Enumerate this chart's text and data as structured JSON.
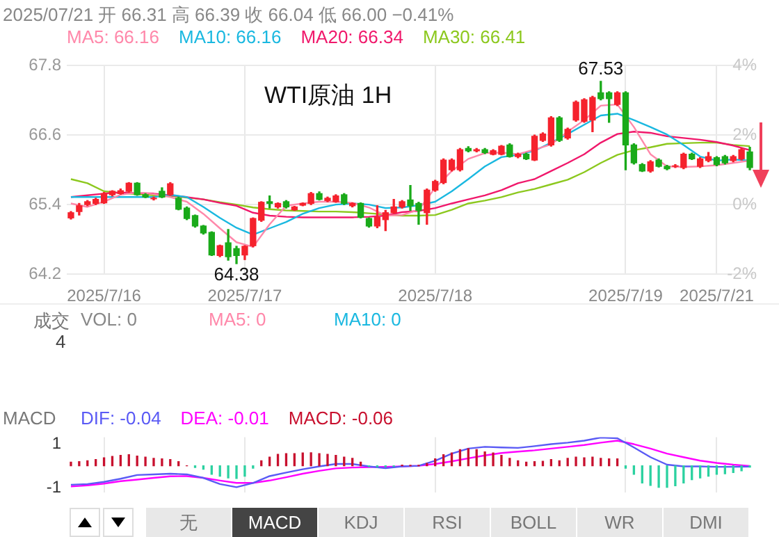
{
  "chart_data": [
    {
      "type": "candlestick",
      "title": "WTI原油 1H",
      "annotations": [
        "2025/07/21 开 66.31 高 66.39 收 66.04 低 66.00 −0.41%",
        {
          "text": "67.53",
          "y": 67.53
        },
        {
          "text": "64.38",
          "y": 64.38
        }
      ],
      "categories": [
        null,
        null,
        null,
        null,
        "2025/7/16",
        null,
        null,
        null,
        null,
        null,
        null,
        null,
        null,
        null,
        null,
        null,
        null,
        null,
        null,
        null,
        null,
        "2025/7/17",
        null,
        null,
        null,
        null,
        null,
        null,
        null,
        null,
        null,
        null,
        null,
        null,
        null,
        null,
        null,
        null,
        null,
        null,
        null,
        null,
        null,
        null,
        "2025/7/18",
        null,
        null,
        null,
        null,
        null,
        null,
        null,
        null,
        null,
        null,
        null,
        null,
        null,
        null,
        null,
        null,
        null,
        null,
        null,
        null,
        null,
        null,
        "2025/7/19",
        null,
        null,
        null,
        null,
        null,
        null,
        null,
        null,
        null,
        null,
        "2025/7/21",
        null,
        null,
        null,
        null
      ],
      "ohlc": [
        [
          65.17,
          65.28,
          65.15,
          65.26
        ],
        [
          65.28,
          65.42,
          65.22,
          65.38
        ],
        [
          65.4,
          65.47,
          65.38,
          65.45
        ],
        [
          65.42,
          65.51,
          65.4,
          65.49
        ],
        [
          65.43,
          65.61,
          65.42,
          65.59
        ],
        [
          65.57,
          65.64,
          65.55,
          65.63
        ],
        [
          65.59,
          65.67,
          65.58,
          65.64
        ],
        [
          65.63,
          65.78,
          65.61,
          65.77
        ],
        [
          65.77,
          65.78,
          65.56,
          65.57
        ],
        [
          65.57,
          65.59,
          65.52,
          65.53
        ],
        [
          65.5,
          65.53,
          65.48,
          65.51
        ],
        [
          65.63,
          65.69,
          65.52,
          65.53
        ],
        [
          65.57,
          65.78,
          65.56,
          65.76
        ],
        [
          65.51,
          65.53,
          65.31,
          65.32
        ],
        [
          65.34,
          65.36,
          65.14,
          65.16
        ],
        [
          65.21,
          65.22,
          65.01,
          65.03
        ],
        [
          65.03,
          65.04,
          64.89,
          64.91
        ],
        [
          64.92,
          64.93,
          64.52,
          64.53
        ],
        [
          64.52,
          64.7,
          64.5,
          64.69
        ],
        [
          64.74,
          64.97,
          64.44,
          64.5
        ],
        [
          64.64,
          64.68,
          64.38,
          64.52
        ],
        [
          64.53,
          64.69,
          64.45,
          64.68
        ],
        [
          64.69,
          65.17,
          64.67,
          65.16
        ],
        [
          65.13,
          65.45,
          65.11,
          65.44
        ],
        [
          65.45,
          65.55,
          65.34,
          65.42
        ],
        [
          65.36,
          65.43,
          65.34,
          65.42
        ],
        [
          65.45,
          65.47,
          65.34,
          65.36
        ],
        [
          65.31,
          65.37,
          65.3,
          65.36
        ],
        [
          65.39,
          65.43,
          65.38,
          65.42
        ],
        [
          65.42,
          65.61,
          65.4,
          65.59
        ],
        [
          65.59,
          65.62,
          65.48,
          65.49
        ],
        [
          65.47,
          65.53,
          65.45,
          65.51
        ],
        [
          65.45,
          65.57,
          65.44,
          65.55
        ],
        [
          65.57,
          65.59,
          65.4,
          65.42
        ],
        [
          65.38,
          65.43,
          65.36,
          65.42
        ],
        [
          65.42,
          65.43,
          65.17,
          65.18
        ],
        [
          65.16,
          65.17,
          65.01,
          65.03
        ],
        [
          65.03,
          65.38,
          65.0,
          65.18
        ],
        [
          65.14,
          65.3,
          64.95,
          65.26
        ],
        [
          65.26,
          65.49,
          65.25,
          65.36
        ],
        [
          65.36,
          65.47,
          65.34,
          65.45
        ],
        [
          65.48,
          65.73,
          65.3,
          65.38
        ],
        [
          65.42,
          65.44,
          65.06,
          65.3
        ],
        [
          65.26,
          65.67,
          65.06,
          65.65
        ],
        [
          65.65,
          65.82,
          65.63,
          65.8
        ],
        [
          65.78,
          66.19,
          65.76,
          66.17
        ],
        [
          66.0,
          66.19,
          65.98,
          66.17
        ],
        [
          66.0,
          66.37,
          65.98,
          66.35
        ],
        [
          66.37,
          66.4,
          66.31,
          66.33
        ],
        [
          66.33,
          66.37,
          66.31,
          66.35
        ],
        [
          66.35,
          66.37,
          66.28,
          66.3
        ],
        [
          66.27,
          66.35,
          66.26,
          66.33
        ],
        [
          66.27,
          66.42,
          66.26,
          66.41
        ],
        [
          66.43,
          66.45,
          66.22,
          66.23
        ],
        [
          66.23,
          66.29,
          66.21,
          66.27
        ],
        [
          66.27,
          66.29,
          66.18,
          66.19
        ],
        [
          66.17,
          66.6,
          66.16,
          66.58
        ],
        [
          66.51,
          66.64,
          66.49,
          66.62
        ],
        [
          66.43,
          66.92,
          66.41,
          66.9
        ],
        [
          66.9,
          66.92,
          66.49,
          66.51
        ],
        [
          66.55,
          66.72,
          66.53,
          66.7
        ],
        [
          66.86,
          67.19,
          66.84,
          67.17
        ],
        [
          66.84,
          67.23,
          66.82,
          67.21
        ],
        [
          66.86,
          67.27,
          66.66,
          67.25
        ],
        [
          67.33,
          67.53,
          67.21,
          67.23
        ],
        [
          67.33,
          67.35,
          66.82,
          67.23
        ],
        [
          67.13,
          67.35,
          67.11,
          67.33
        ],
        [
          67.33,
          67.35,
          66.0,
          66.43
        ],
        [
          66.43,
          66.45,
          66.1,
          66.12
        ],
        [
          66.09,
          66.11,
          65.97,
          65.98
        ],
        [
          65.98,
          66.16,
          65.96,
          66.14
        ],
        [
          66.17,
          66.19,
          66.05,
          66.06
        ],
        [
          66.06,
          66.08,
          66.0,
          66.02
        ],
        [
          66.06,
          66.09,
          66.04,
          66.07
        ],
        [
          66.04,
          66.29,
          66.02,
          66.27
        ],
        [
          66.27,
          66.29,
          66.18,
          66.19
        ],
        [
          66.06,
          66.21,
          66.04,
          66.19
        ],
        [
          66.16,
          66.3,
          66.14,
          66.23
        ],
        [
          66.21,
          66.23,
          66.07,
          66.09
        ],
        [
          66.23,
          66.25,
          66.1,
          66.12
        ],
        [
          66.16,
          66.25,
          66.14,
          66.23
        ],
        [
          66.19,
          66.37,
          66.17,
          66.35
        ],
        [
          66.31,
          66.39,
          66.0,
          66.04
        ]
      ],
      "colors": [
        "#f5222d",
        "#f5222d",
        "#f5222d",
        "#f5222d",
        "#f5222d",
        "#f5222d",
        "#f5222d",
        "#f5222d",
        "#1aaa1a",
        "#1aaa1a",
        "#f5222d",
        "#1aaa1a",
        "#f5222d",
        "#1aaa1a",
        "#1aaa1a",
        "#1aaa1a",
        "#1aaa1a",
        "#1aaa1a",
        "#f5222d",
        "#1aaa1a",
        "#1aaa1a",
        "#f5222d",
        "#f5222d",
        "#f5222d",
        "#1aaa1a",
        "#f5222d",
        "#1aaa1a",
        "#f5222d",
        "#f5222d",
        "#f5222d",
        "#1aaa1a",
        "#f5222d",
        "#f5222d",
        "#1aaa1a",
        "#f5222d",
        "#1aaa1a",
        "#1aaa1a",
        "#f5222d",
        "#f5222d",
        "#f5222d",
        "#f5222d",
        "#1aaa1a",
        "#1aaa1a",
        "#f5222d",
        "#f5222d",
        "#f5222d",
        "#f5222d",
        "#f5222d",
        "#1aaa1a",
        "#f5222d",
        "#1aaa1a",
        "#f5222d",
        "#f5222d",
        "#1aaa1a",
        "#f5222d",
        "#1aaa1a",
        "#f5222d",
        "#f5222d",
        "#f5222d",
        "#1aaa1a",
        "#f5222d",
        "#f5222d",
        "#f5222d",
        "#f5222d",
        "#1aaa1a",
        "#1aaa1a",
        "#f5222d",
        "#1aaa1a",
        "#1aaa1a",
        "#1aaa1a",
        "#f5222d",
        "#1aaa1a",
        "#1aaa1a",
        "#f5222d",
        "#f5222d",
        "#1aaa1a",
        "#f5222d",
        "#f5222d",
        "#1aaa1a",
        "#1aaa1a",
        "#f5222d",
        "#f5222d",
        "#1aaa1a"
      ],
      "series": [
        {
          "name": "MA5: 66.16",
          "type": "line",
          "color": "#ff88aa",
          "values": [
            65.42,
            null,
            65.36,
            null,
            65.45,
            null,
            65.57,
            null,
            65.61,
            null,
            65.58,
            null,
            65.53,
            null,
            65.45,
            null,
            65.24,
            null,
            64.99,
            null,
            64.75,
            null,
            64.67,
            null,
            65.06,
            null,
            65.38,
            null,
            65.42,
            null,
            65.45,
            null,
            65.45,
            null,
            65.43,
            null,
            65.35,
            null,
            65.21,
            null,
            65.22,
            null,
            65.31,
            null,
            65.69,
            null,
            65.98,
            null,
            66.19,
            null,
            66.29,
            null,
            66.3,
            null,
            66.27,
            null,
            66.35,
            null,
            66.44,
            null,
            66.66,
            null,
            66.86,
            null,
            67.11,
            null,
            67.13,
            null,
            66.74,
            null,
            66.27,
            null,
            66.06,
            null,
            66.05,
            null,
            66.06,
            null,
            66.08,
            null,
            66.12,
            null,
            66.16
          ]
        },
        {
          "name": "MA10: 66.16",
          "type": "line",
          "color": "#1ab8e0",
          "values": [
            65.53,
            null,
            65.53,
            null,
            65.53,
            null,
            65.53,
            null,
            65.53,
            null,
            65.53,
            null,
            65.57,
            null,
            65.53,
            null,
            65.36,
            null,
            65.17,
            null,
            65.0,
            null,
            64.88,
            null,
            64.99,
            null,
            65.1,
            null,
            65.24,
            null,
            65.34,
            null,
            65.4,
            null,
            65.42,
            null,
            65.4,
            null,
            65.34,
            null,
            65.35,
            null,
            65.39,
            null,
            65.45,
            null,
            65.63,
            null,
            65.84,
            null,
            66.06,
            null,
            66.22,
            null,
            66.26,
            null,
            66.33,
            null,
            66.47,
            null,
            66.62,
            null,
            66.78,
            null,
            66.94,
            null,
            66.97,
            null,
            66.86,
            null,
            66.74,
            null,
            66.61,
            null,
            66.43,
            null,
            66.23,
            null,
            66.16,
            null,
            66.18,
            null,
            66.16
          ]
        },
        {
          "name": "MA20: 66.34",
          "type": "line",
          "color": "#f0186b",
          "values": [
            65.53,
            null,
            65.56,
            null,
            65.59,
            null,
            65.61,
            null,
            65.6,
            null,
            65.59,
            null,
            65.56,
            null,
            65.53,
            null,
            65.49,
            null,
            65.43,
            null,
            65.38,
            null,
            65.26,
            null,
            65.21,
            null,
            65.19,
            null,
            65.18,
            null,
            65.18,
            null,
            65.18,
            null,
            65.18,
            null,
            65.19,
            null,
            65.21,
            null,
            65.27,
            null,
            65.29,
            null,
            65.34,
            null,
            65.42,
            null,
            65.49,
            null,
            65.56,
            null,
            65.65,
            null,
            65.77,
            null,
            65.84,
            null,
            65.98,
            null,
            66.12,
            null,
            66.27,
            null,
            66.47,
            null,
            66.62,
            null,
            66.66,
            null,
            66.64,
            null,
            66.58,
            null,
            66.55,
            null,
            66.52,
            null,
            66.48,
            null,
            66.42,
            null,
            66.34
          ]
        },
        {
          "name": "MA30: 66.41",
          "type": "line",
          "color": "#8cc81e",
          "values": [
            65.84,
            null,
            65.77,
            null,
            65.63,
            null,
            65.6,
            null,
            65.58,
            null,
            65.56,
            null,
            65.55,
            null,
            65.52,
            null,
            65.49,
            null,
            65.44,
            null,
            65.4,
            null,
            65.35,
            null,
            65.32,
            null,
            65.3,
            null,
            65.29,
            null,
            65.28,
            null,
            65.28,
            null,
            65.27,
            null,
            65.25,
            null,
            65.23,
            null,
            65.21,
            null,
            65.21,
            null,
            65.22,
            null,
            65.31,
            null,
            65.42,
            null,
            65.47,
            null,
            65.53,
            null,
            65.61,
            null,
            65.67,
            null,
            65.75,
            null,
            65.83,
            null,
            65.96,
            null,
            66.12,
            null,
            66.26,
            null,
            66.34,
            null,
            66.39,
            null,
            66.45,
            null,
            66.46,
            null,
            66.47,
            null,
            66.47,
            null,
            66.43,
            null,
            66.41
          ]
        }
      ],
      "ylim": [
        64.2,
        67.8
      ],
      "yticks": [
        64.2,
        65.4,
        66.6,
        67.8
      ],
      "y2lim": [
        -2,
        4
      ],
      "y2ticks": [
        {
          "value": -2,
          "label": "-2%"
        },
        {
          "value": 0,
          "label": "0%"
        },
        {
          "value": 2,
          "label": "2%"
        },
        {
          "value": 4,
          "label": "4%"
        }
      ],
      "grid": true,
      "legend": "top left",
      "marker": "none"
    },
    {
      "type": "other",
      "title": "成交",
      "annotations": [
        "VOL: 0",
        "MA5: 0",
        "MA10: 0",
        "4"
      ]
    },
    {
      "type": "bar",
      "title": "MACD",
      "categories": [
        null,
        null,
        null,
        null,
        "2025/7/16",
        null,
        null,
        null,
        null,
        null,
        null,
        null,
        null,
        null,
        null,
        null,
        null,
        null,
        null,
        null,
        null,
        "2025/7/17",
        null,
        null,
        null,
        null,
        null,
        null,
        null,
        null,
        null,
        null,
        null,
        null,
        null,
        null,
        null,
        null,
        null,
        null,
        null,
        null,
        null,
        null,
        "2025/7/18",
        null,
        null,
        null,
        null,
        null,
        null,
        null,
        null,
        null,
        null,
        null,
        null,
        null,
        null,
        null,
        null,
        null,
        null,
        null,
        null,
        null,
        null,
        "2025/7/19",
        null,
        null,
        null,
        null,
        null,
        null,
        null,
        null,
        null,
        null,
        "2025/7/21",
        null,
        null,
        null,
        null
      ],
      "series": [
        {
          "name": "DIF: -0.04",
          "type": "line",
          "color": "#5a5af5",
          "values": [
            -0.86,
            null,
            -0.83,
            null,
            -0.73,
            null,
            -0.59,
            null,
            -0.42,
            null,
            -0.39,
            null,
            -0.36,
            null,
            -0.39,
            null,
            -0.55,
            null,
            -0.83,
            null,
            -0.97,
            null,
            -0.78,
            null,
            -0.47,
            null,
            -0.31,
            null,
            -0.16,
            null,
            -0.03,
            null,
            0.08,
            null,
            0.08,
            null,
            -0.03,
            null,
            -0.11,
            null,
            -0.03,
            null,
            0.0,
            null,
            0.23,
            null,
            0.55,
            null,
            0.78,
            null,
            0.86,
            null,
            0.83,
            null,
            0.81,
            null,
            0.89,
            null,
            0.98,
            null,
            1.05,
            null,
            1.14,
            null,
            1.28,
            null,
            1.25,
            null,
            0.83,
            null,
            0.39,
            null,
            0.05,
            null,
            -0.03,
            null,
            -0.03,
            null,
            -0.05,
            null,
            -0.05,
            null,
            -0.04
          ]
        },
        {
          "name": "DEA: -0.01",
          "type": "line",
          "color": "#ff00ff",
          "values": [
            -0.94,
            null,
            -0.89,
            null,
            -0.81,
            null,
            -0.7,
            null,
            -0.63,
            null,
            -0.55,
            null,
            -0.48,
            null,
            -0.47,
            null,
            -0.55,
            null,
            -0.67,
            null,
            -0.78,
            null,
            -0.78,
            null,
            -0.67,
            null,
            -0.52,
            null,
            -0.36,
            null,
            -0.23,
            null,
            -0.12,
            null,
            -0.08,
            null,
            -0.06,
            null,
            -0.05,
            null,
            -0.03,
            null,
            0.0,
            null,
            0.08,
            null,
            0.2,
            null,
            0.34,
            null,
            0.47,
            null,
            0.58,
            null,
            0.64,
            null,
            0.7,
            null,
            0.78,
            null,
            0.86,
            null,
            0.94,
            null,
            1.05,
            null,
            1.14,
            null,
            0.98,
            null,
            0.78,
            null,
            0.55,
            null,
            0.39,
            null,
            0.23,
            null,
            0.13,
            null,
            0.05,
            null,
            -0.01
          ]
        },
        {
          "name": "MACD: -0.06",
          "type": "bar",
          "color": "#c8102e",
          "values": [
            0.16,
            0.19,
            0.23,
            0.28,
            0.36,
            0.42,
            0.47,
            0.5,
            0.44,
            0.39,
            0.34,
            0.31,
            0.28,
            0.19,
            0,
            -0.08,
            -0.16,
            -0.39,
            -0.47,
            -0.55,
            -0.58,
            -0.47,
            -0.11,
            0.23,
            0.39,
            0.52,
            0.55,
            0.55,
            0.58,
            0.59,
            0.55,
            0.52,
            0.47,
            0.39,
            0.34,
            0.16,
            -0.03,
            -0.05,
            -0.05,
            -0.02,
            0.03,
            0.02,
            0.02,
            0.11,
            0.31,
            0.5,
            0.58,
            0.73,
            0.78,
            0.73,
            0.63,
            0.58,
            0.47,
            0.34,
            0.23,
            0.16,
            0.19,
            0.2,
            0.28,
            0.23,
            0.34,
            0.39,
            0.36,
            0.39,
            0.34,
            0.31,
            0.31,
            -0.11,
            -0.39,
            -0.78,
            -0.89,
            -0.98,
            -0.98,
            -0.91,
            -0.78,
            -0.63,
            -0.55,
            -0.47,
            -0.39,
            -0.36,
            -0.31,
            -0.23,
            -0.06
          ],
          "colors": [
            "#c8102e",
            "#c8102e",
            "#c8102e",
            "#c8102e",
            "#c8102e",
            "#c8102e",
            "#c8102e",
            "#c8102e",
            "#c8102e",
            "#c8102e",
            "#c8102e",
            "#c8102e",
            "#c8102e",
            "#c8102e",
            "#c8102e",
            "#2bd1a0",
            "#2bd1a0",
            "#2bd1a0",
            "#2bd1a0",
            "#2bd1a0",
            "#2bd1a0",
            "#2bd1a0",
            "#2bd1a0",
            "#c8102e",
            "#c8102e",
            "#c8102e",
            "#c8102e",
            "#c8102e",
            "#c8102e",
            "#c8102e",
            "#c8102e",
            "#c8102e",
            "#c8102e",
            "#c8102e",
            "#c8102e",
            "#c8102e",
            "#2bd1a0",
            "#2bd1a0",
            "#2bd1a0",
            "#2bd1a0",
            "#c8102e",
            "#c8102e",
            "#c8102e",
            "#c8102e",
            "#c8102e",
            "#c8102e",
            "#c8102e",
            "#c8102e",
            "#c8102e",
            "#c8102e",
            "#c8102e",
            "#c8102e",
            "#c8102e",
            "#c8102e",
            "#c8102e",
            "#c8102e",
            "#c8102e",
            "#c8102e",
            "#c8102e",
            "#c8102e",
            "#c8102e",
            "#c8102e",
            "#c8102e",
            "#c8102e",
            "#c8102e",
            "#c8102e",
            "#c8102e",
            "#2bd1a0",
            "#2bd1a0",
            "#2bd1a0",
            "#2bd1a0",
            "#2bd1a0",
            "#2bd1a0",
            "#2bd1a0",
            "#2bd1a0",
            "#2bd1a0",
            "#2bd1a0",
            "#2bd1a0",
            "#2bd1a0",
            "#2bd1a0",
            "#2bd1a0",
            "#2bd1a0",
            "#2bd1a0"
          ]
        }
      ],
      "ylim": [
        -1.2,
        1.3
      ],
      "yticks": [
        -1,
        1
      ],
      "tick_labels": "y",
      "grid": "x",
      "legend": "top left",
      "marker": "none",
      "annotations": [
        "无",
        "MACD",
        "KDJ",
        "RSI",
        "BOLL",
        "WR",
        "DMI"
      ]
    }
  ]
}
